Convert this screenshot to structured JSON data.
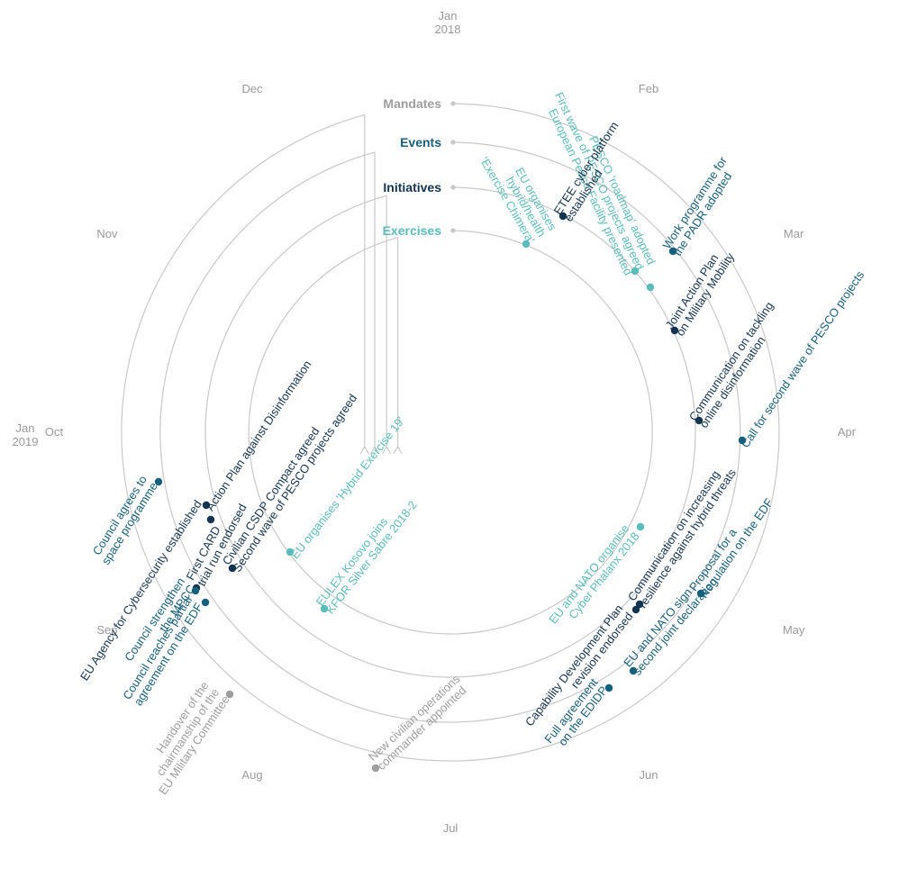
{
  "colors": {
    "mandates": "#9e9e9e",
    "events": "#17607d",
    "initiatives": "#143452",
    "exercises": "#5bbdbb",
    "track": "#c9c9c9",
    "months": "#9a9a9a"
  },
  "timeline": {
    "start": "2018-01",
    "end": "2019-01",
    "months": [
      {
        "key": "jan2018",
        "label": "Jan",
        "year": "2018"
      },
      {
        "key": "feb",
        "label": "Feb"
      },
      {
        "key": "mar",
        "label": "Mar"
      },
      {
        "key": "apr",
        "label": "Apr"
      },
      {
        "key": "may",
        "label": "May"
      },
      {
        "key": "jun",
        "label": "Jun"
      },
      {
        "key": "jul",
        "label": "Jul"
      },
      {
        "key": "aug",
        "label": "Aug"
      },
      {
        "key": "sep",
        "label": "Sep"
      },
      {
        "key": "oct",
        "label": "Oct"
      },
      {
        "key": "nov",
        "label": "Nov"
      },
      {
        "key": "dec",
        "label": "Dec"
      },
      {
        "key": "jan2019",
        "label": "Jan",
        "year": "2019"
      }
    ]
  },
  "categories": [
    {
      "key": "mandates",
      "label": "Mandates",
      "color": "#9e9e9e"
    },
    {
      "key": "events",
      "label": "Events",
      "color": "#17607d"
    },
    {
      "key": "initiatives",
      "label": "Initiatives",
      "color": "#143452"
    },
    {
      "key": "exercises",
      "label": "Exercises",
      "color": "#5bbdbb"
    }
  ],
  "events": [
    {
      "id": "chimera",
      "track": "exercises",
      "date": "2018-02",
      "lines": [
        "EU organises",
        "hybrid/health",
        "'Exercise Chimera'"
      ]
    },
    {
      "id": "pesco_roadmap",
      "track": "exercises",
      "date": "2018-03",
      "lines": [
        "PESCO 'roadmap' adopted",
        "First wave of PESCO projects agreed",
        "European Peace Facility presented"
      ]
    },
    {
      "id": "phalanx",
      "track": "exercises",
      "date": "2018-06",
      "lines": [
        "EU and NATO organise",
        "Cyber Phalanx 2018"
      ]
    },
    {
      "id": "hybrid19",
      "track": "exercises",
      "date": "2018-11",
      "lines": [
        "EU organises 'Hybrid Exercise 19'"
      ]
    },
    {
      "id": "silver_sabre",
      "track": "exercises",
      "date": "2018-11",
      "lines": [
        "EULEX Kosovo joins",
        "KFOR Silver Sabre 2018-2"
      ]
    },
    {
      "id": "etee",
      "track": "initiatives",
      "date": "2018-02",
      "lines": [
        "ETEE cyber platform",
        "established"
      ]
    },
    {
      "id": "cdp",
      "track": "initiatives",
      "date": "2018-06",
      "lines": [
        "Capability Development Plan",
        "revision endorsed"
      ]
    },
    {
      "id": "csdp_compact",
      "track": "initiatives",
      "date": "2018-11",
      "lines": [
        "Civilian CSDP Compact agreed",
        "Second wave of PESCO projects agreed"
      ]
    },
    {
      "id": "jap_mobility",
      "track": "initiatives",
      "date": "2018-03",
      "lines": [
        "Joint Action Plan",
        "on Military Mobility"
      ]
    },
    {
      "id": "disinfo_comm",
      "track": "initiatives",
      "date": "2018-04",
      "lines": [
        "Communication on tackling",
        "online disinformation"
      ]
    },
    {
      "id": "hybrid_comm",
      "track": "initiatives",
      "date": "2018-06",
      "lines": [
        "Communication on increasing",
        "resilience against hybrid threats"
      ]
    },
    {
      "id": "first_card",
      "track": "initiatives",
      "date": "2018-12",
      "lines": [
        "First CARD",
        "trial run endorsed"
      ]
    },
    {
      "id": "ap_disinfo",
      "track": "initiatives",
      "date": "2018-12",
      "lines": [
        "Action Plan against Disinformation"
      ]
    },
    {
      "id": "cyber_agency",
      "track": "initiatives",
      "date": "2018-12",
      "lines": [
        "EU Agency for Cybersecurity established"
      ]
    },
    {
      "id": "padr",
      "track": "events",
      "date": "2018-03",
      "lines": [
        "Work programme for",
        "the PADR adopted"
      ]
    },
    {
      "id": "call_pesco",
      "track": "events",
      "date": "2018-05",
      "lines": [
        "Call for second wave of PESCO projects"
      ]
    },
    {
      "id": "edf_reg",
      "track": "events",
      "date": "2018-06",
      "lines": [
        "Proposal for a",
        "Regulation on the EDF"
      ]
    },
    {
      "id": "eu_nato",
      "track": "events",
      "date": "2018-07",
      "lines": [
        "EU and NATO sign",
        "second joint declaration"
      ]
    },
    {
      "id": "edidp",
      "track": "events",
      "date": "2018-07",
      "lines": [
        "Full agreement",
        "on the EDIDP"
      ]
    },
    {
      "id": "mpcc",
      "track": "events",
      "date": "2018-12",
      "lines": [
        "Council strengthen",
        "the MPCC"
      ]
    },
    {
      "id": "edf_partial",
      "track": "events",
      "date": "2018-12",
      "lines": [
        "Council reaches partial",
        "agreement on the EDF"
      ]
    },
    {
      "id": "space",
      "track": "events",
      "date": "2018-12",
      "lines": [
        "Council agrees to",
        "space programme"
      ]
    },
    {
      "id": "civ_commander",
      "track": "mandates",
      "date": "2018-08",
      "lines": [
        "New civilian operations",
        "commander appointed"
      ]
    },
    {
      "id": "eumc_handover",
      "track": "mandates",
      "date": "2018-11",
      "lines": [
        "Handover of the",
        "chairmanship of the",
        "EU Military Committee"
      ]
    }
  ]
}
